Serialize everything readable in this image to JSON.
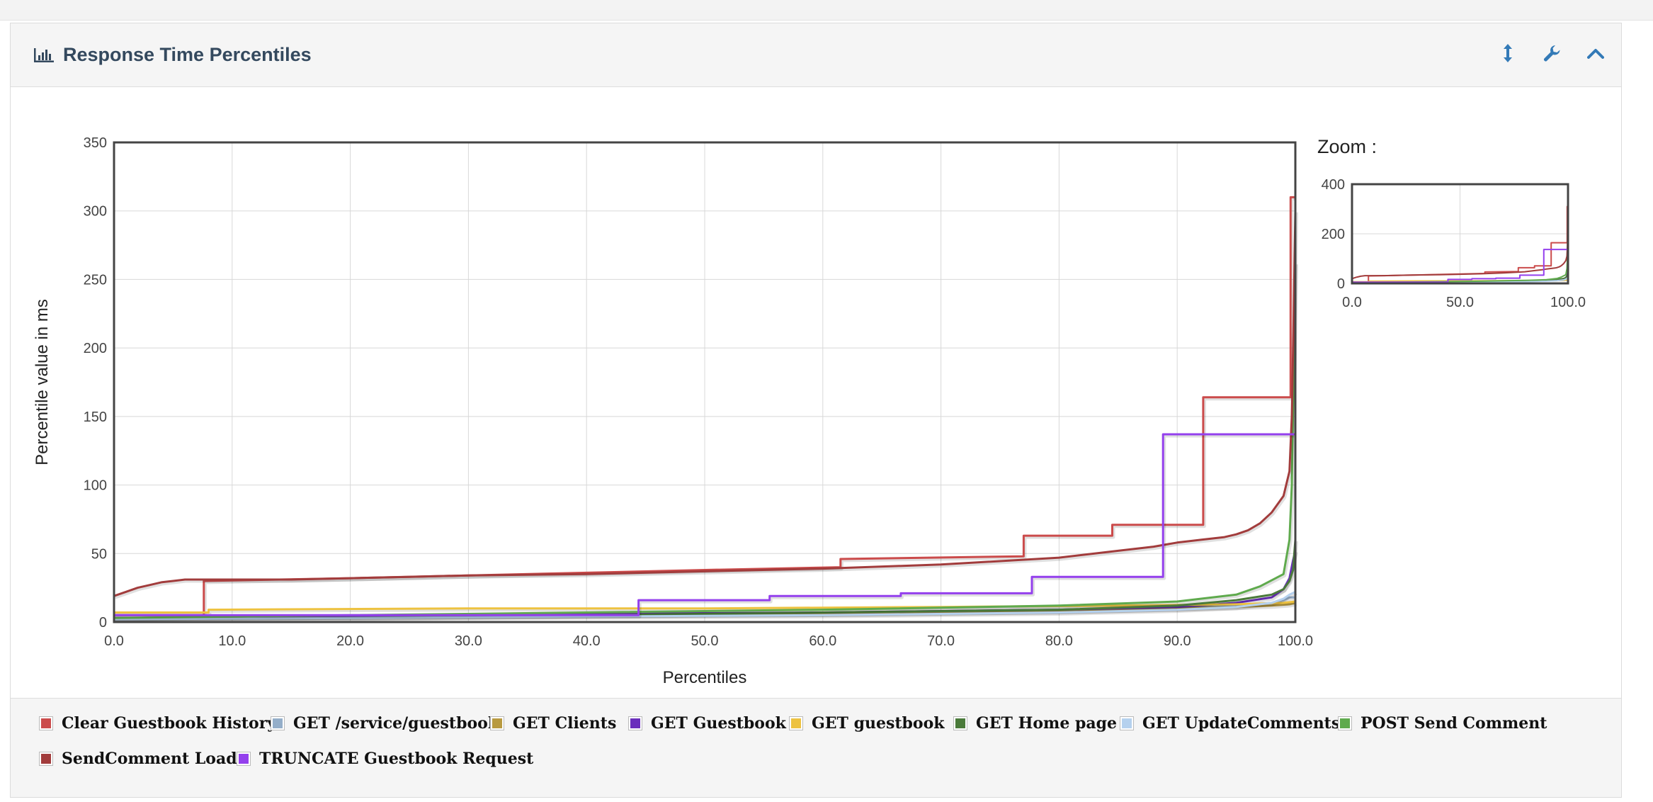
{
  "panel": {
    "title": "Response Time Percentiles",
    "tools": [
      "resize-vertical-icon",
      "wrench-icon",
      "chevron-up-icon"
    ]
  },
  "zoom": {
    "label": "Zoom :"
  },
  "chart_data": {
    "type": "line",
    "title": "Response Time Percentiles",
    "xlabel": "Percentiles",
    "ylabel": "Percentile value in ms",
    "xlim": [
      0,
      100
    ],
    "ylim": [
      0,
      350
    ],
    "xticks": [
      "0.0",
      "10.0",
      "20.0",
      "30.0",
      "40.0",
      "50.0",
      "60.0",
      "70.0",
      "80.0",
      "90.0",
      "100.0"
    ],
    "yticks": [
      "0",
      "50",
      "100",
      "150",
      "200",
      "250",
      "300",
      "350"
    ],
    "grid": true,
    "legend_position": "bottom",
    "zoom_chart": {
      "xlim": [
        0,
        100
      ],
      "ylim": [
        0,
        400
      ],
      "xticks": [
        "0.0",
        "50.0",
        "100.0"
      ],
      "yticks": [
        "0",
        "200",
        "400"
      ]
    },
    "series": [
      {
        "name": "Clear Guestbook History",
        "color": "#cb4b4b",
        "x": [
          0,
          7.6,
          7.6,
          20,
          30,
          40,
          50,
          61.5,
          61.5,
          77,
          77,
          84.5,
          84.5,
          92.2,
          92.2,
          99.6,
          99.6,
          100
        ],
        "y": [
          5,
          5,
          30,
          32,
          34,
          36,
          38,
          40,
          46,
          48,
          63,
          63,
          71,
          71,
          164,
          164,
          310,
          310
        ]
      },
      {
        "name": "GET /service/guestbook",
        "color": "#94aec9",
        "x": [
          0,
          20,
          40,
          60,
          80,
          90,
          95,
          98,
          99,
          99.5,
          100
        ],
        "y": [
          3,
          4,
          5,
          6,
          8,
          10,
          12,
          14,
          16,
          18,
          18
        ]
      },
      {
        "name": "GET Clients",
        "color": "#b89a40",
        "x": [
          0,
          20,
          40,
          60,
          80,
          90,
          95,
          98,
          99.5,
          100
        ],
        "y": [
          3,
          4,
          5,
          6,
          8,
          10,
          11,
          12,
          13,
          14
        ]
      },
      {
        "name": "GET Guestbook",
        "color": "#6a2fbc",
        "x": [
          0,
          20,
          40,
          60,
          80,
          90,
          95,
          98,
          99,
          99.5,
          99.8,
          100
        ],
        "y": [
          3,
          4,
          6,
          7,
          9,
          11,
          14,
          18,
          24,
          32,
          45,
          52
        ]
      },
      {
        "name": "GET guestbook",
        "color": "#edc240",
        "x": [
          0,
          8,
          8,
          30,
          50,
          70,
          85,
          95,
          99,
          100
        ],
        "y": [
          7,
          7,
          9,
          10,
          10,
          11,
          12,
          13,
          14,
          15
        ]
      },
      {
        "name": "GET Home page",
        "color": "#4a7a3a",
        "x": [
          0,
          20,
          40,
          60,
          80,
          90,
          95,
          98,
          99,
          99.5,
          99.8,
          100
        ],
        "y": [
          2,
          3,
          5,
          7,
          9,
          12,
          16,
          20,
          24,
          30,
          38,
          60
        ]
      },
      {
        "name": "GET UpdateComments",
        "color": "#b5d1ee",
        "x": [
          0,
          20,
          40,
          60,
          80,
          90,
          95,
          98,
          99,
          99.5,
          100
        ],
        "y": [
          2,
          3,
          4,
          5,
          7,
          9,
          11,
          14,
          17,
          20,
          22
        ]
      },
      {
        "name": "POST Send Comment",
        "color": "#5faa4d",
        "x": [
          0,
          20,
          40,
          60,
          80,
          90,
          95,
          97,
          99,
          99.5,
          99.7,
          99.85,
          100
        ],
        "y": [
          3,
          5,
          7,
          9,
          12,
          15,
          20,
          26,
          35,
          60,
          100,
          180,
          262
        ]
      },
      {
        "name": "SendComment Load",
        "color": "#a23c3c",
        "x": [
          0,
          1,
          2,
          3,
          4,
          5,
          6,
          8,
          10,
          15,
          20,
          25,
          30,
          40,
          50,
          60,
          70,
          80,
          85,
          88,
          90,
          92,
          94,
          95,
          96,
          97,
          98,
          99,
          99.5,
          99.7,
          99.85,
          100
        ],
        "y": [
          19,
          22,
          25,
          27,
          29,
          30,
          31,
          31,
          31,
          31,
          32,
          33,
          34,
          35,
          37,
          39,
          42,
          47,
          52,
          55,
          58,
          60,
          62,
          64,
          67,
          72,
          80,
          92,
          110,
          150,
          220,
          300
        ]
      },
      {
        "name": "TRUNCATE Guestbook Request",
        "color": "#9440ed",
        "x": [
          0,
          44.4,
          44.4,
          55.5,
          55.5,
          66.6,
          66.6,
          77.7,
          77.7,
          88.8,
          88.8,
          100
        ],
        "y": [
          5,
          5,
          16,
          16,
          19,
          19,
          21,
          21,
          33,
          33,
          137,
          137
        ]
      }
    ]
  }
}
